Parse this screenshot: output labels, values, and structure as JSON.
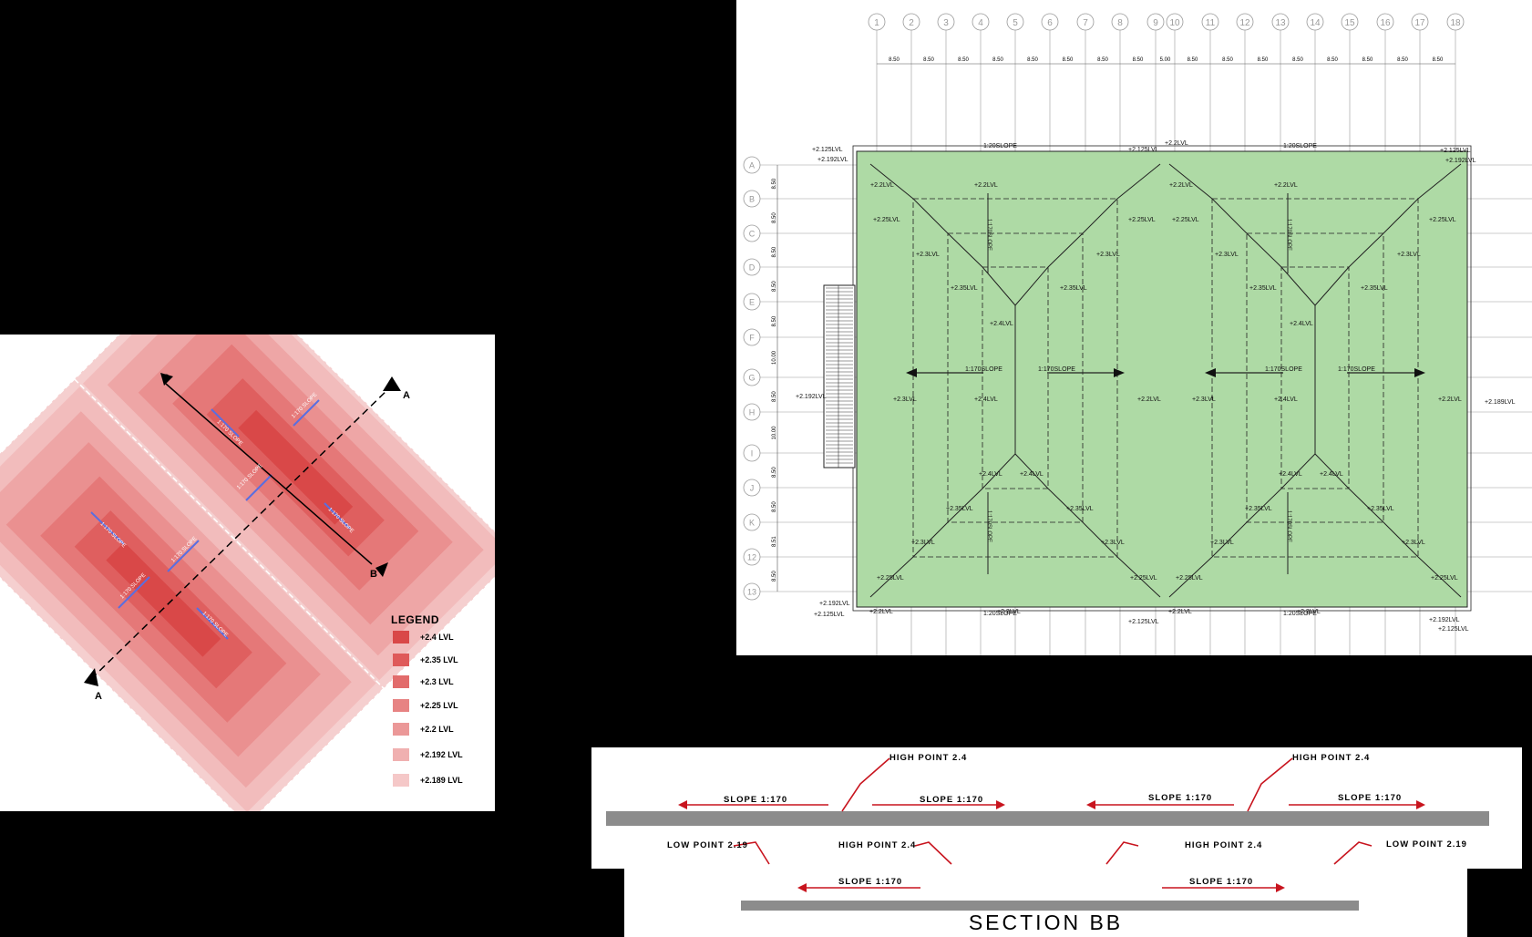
{
  "legend": {
    "title": "LEGEND",
    "items": [
      {
        "label": "+2.4 LVL",
        "color": "#d94848"
      },
      {
        "label": "+2.35 LVL",
        "color": "#df5a5a"
      },
      {
        "label": "+2.3 LVL",
        "color": "#e26c6c"
      },
      {
        "label": "+2.25 LVL",
        "color": "#e78383"
      },
      {
        "label": "+2.2 LVL",
        "color": "#eb9898"
      },
      {
        "label": "+2.192 LVL",
        "color": "#f0b0b0"
      },
      {
        "label": "+2.189 LVL",
        "color": "#f5c8c8"
      }
    ],
    "section_markers": {
      "a": "A",
      "b": "B"
    },
    "slope_labels": [
      "1:170 SLOPE",
      "1:170 SLOPE",
      "1:170 SLOPE",
      "1:170 SLOPE",
      "1:170 SLOPE",
      "1:170 SLOPE",
      "1:170 SLOPE",
      "1:170 SLOPE"
    ]
  },
  "plan": {
    "column_grid": [
      "1",
      "2",
      "3",
      "4",
      "5",
      "6",
      "7",
      "8",
      "9",
      "10",
      "11",
      "12",
      "13",
      "14",
      "15",
      "16",
      "17",
      "18"
    ],
    "column_spacing": [
      "8.50",
      "8.50",
      "8.50",
      "8.50",
      "8.50",
      "8.50",
      "8.50",
      "8.50",
      "5.00",
      "8.50",
      "8.50",
      "8.50",
      "8.50",
      "8.50",
      "8.50",
      "8.50",
      "8.50"
    ],
    "row_grid": [
      "A",
      "B",
      "C",
      "D",
      "E",
      "F",
      "G",
      "H",
      "I",
      "J",
      "K",
      "12",
      "13"
    ],
    "row_spacing": [
      "8.50",
      "8.50",
      "8.50",
      "8.50",
      "8.50",
      "10.00",
      "8.50",
      "10.00",
      "8.50",
      "8.50",
      "8.51",
      "8.50"
    ],
    "level_labels": {
      "l2125": "+2.125LVL",
      "l2192": "+2.192LVL",
      "l22": "+2.2LVL",
      "l225": "+2.25LVL",
      "l23": "+2.3LVL",
      "l235": "+2.35LVL",
      "l24": "+2.4LVL",
      "l2189": "+2.189LVL"
    },
    "slope_labels": {
      "s120": "1:20SLOPE",
      "s170": "1:170SLOPE"
    },
    "colors": {
      "roof_fill": "#aedaa5",
      "grid_line": "#9a9a9a"
    }
  },
  "section_a": {
    "annotations": [
      {
        "text": "HIGH POINT 2.4"
      },
      {
        "text": "SLOPE 1:170"
      },
      {
        "text": "SLOPE 1:170"
      },
      {
        "text": "SLOPE 1:170"
      },
      {
        "text": "HIGH POINT 2.4"
      },
      {
        "text": "SLOPE 1:170"
      }
    ],
    "low_a": "LOW POINT 2.19",
    "high_a": "HIGH POINT  2.4",
    "high_b": "HIGH POINT 2.4",
    "low_b": "LOW POINT 2.19",
    "slope_a": "SLOPE 1:170",
    "slope_b": "SLOPE 1:170",
    "arrow_color": "#c8141e",
    "slab_color": "#8c8c8c"
  },
  "section_b": {
    "title": "SECTION BB"
  }
}
